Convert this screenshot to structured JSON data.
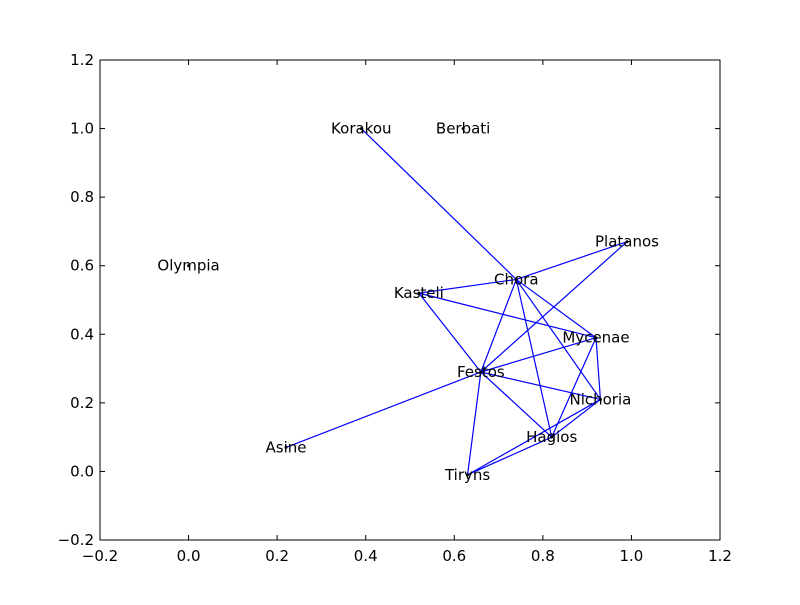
{
  "chart_data": {
    "type": "network",
    "title": "",
    "xlabel": "",
    "ylabel": "",
    "xlim": [
      -0.2,
      1.2
    ],
    "ylim": [
      -0.2,
      1.2
    ],
    "xticks": [
      -0.2,
      0.0,
      0.2,
      0.4,
      0.6,
      0.8,
      1.0,
      1.2
    ],
    "yticks": [
      -0.2,
      0.0,
      0.2,
      0.4,
      0.6,
      0.8,
      1.0,
      1.2
    ],
    "xtick_labels": [
      "−0.2",
      "0.0",
      "0.2",
      "0.4",
      "0.6",
      "0.8",
      "1.0",
      "1.2"
    ],
    "ytick_labels": [
      "−0.2",
      "0.0",
      "0.2",
      "0.4",
      "0.6",
      "0.8",
      "1.0",
      "1.2"
    ],
    "grid": false,
    "edge_color": "#0000ff",
    "nodes": [
      {
        "name": "Korakou",
        "x": 0.39,
        "y": 1.0
      },
      {
        "name": "Berbati",
        "x": 0.62,
        "y": 1.0
      },
      {
        "name": "Olympia",
        "x": 0.0,
        "y": 0.6
      },
      {
        "name": "Platanos",
        "x": 0.99,
        "y": 0.67
      },
      {
        "name": "Chora",
        "x": 0.74,
        "y": 0.56
      },
      {
        "name": "Kasteli",
        "x": 0.52,
        "y": 0.52
      },
      {
        "name": "Mycenae",
        "x": 0.92,
        "y": 0.39
      },
      {
        "name": "Festos",
        "x": 0.66,
        "y": 0.29
      },
      {
        "name": "Nichoria",
        "x": 0.93,
        "y": 0.21
      },
      {
        "name": "Hagios",
        "x": 0.82,
        "y": 0.1
      },
      {
        "name": "Asine",
        "x": 0.22,
        "y": 0.07
      },
      {
        "name": "Tiryns",
        "x": 0.63,
        "y": -0.01
      }
    ],
    "edges": [
      [
        "Korakou",
        "Chora"
      ],
      [
        "Chora",
        "Platanos"
      ],
      [
        "Chora",
        "Kasteli"
      ],
      [
        "Chora",
        "Mycenae"
      ],
      [
        "Chora",
        "Festos"
      ],
      [
        "Chora",
        "Nichoria"
      ],
      [
        "Chora",
        "Hagios"
      ],
      [
        "Kasteli",
        "Mycenae"
      ],
      [
        "Kasteli",
        "Festos"
      ],
      [
        "Platanos",
        "Festos"
      ],
      [
        "Mycenae",
        "Festos"
      ],
      [
        "Mycenae",
        "Nichoria"
      ],
      [
        "Mycenae",
        "Hagios"
      ],
      [
        "Festos",
        "Nichoria"
      ],
      [
        "Festos",
        "Hagios"
      ],
      [
        "Festos",
        "Tiryns"
      ],
      [
        "Festos",
        "Asine"
      ],
      [
        "Nichoria",
        "Hagios"
      ],
      [
        "Nichoria",
        "Tiryns"
      ],
      [
        "Hagios",
        "Tiryns"
      ]
    ]
  }
}
